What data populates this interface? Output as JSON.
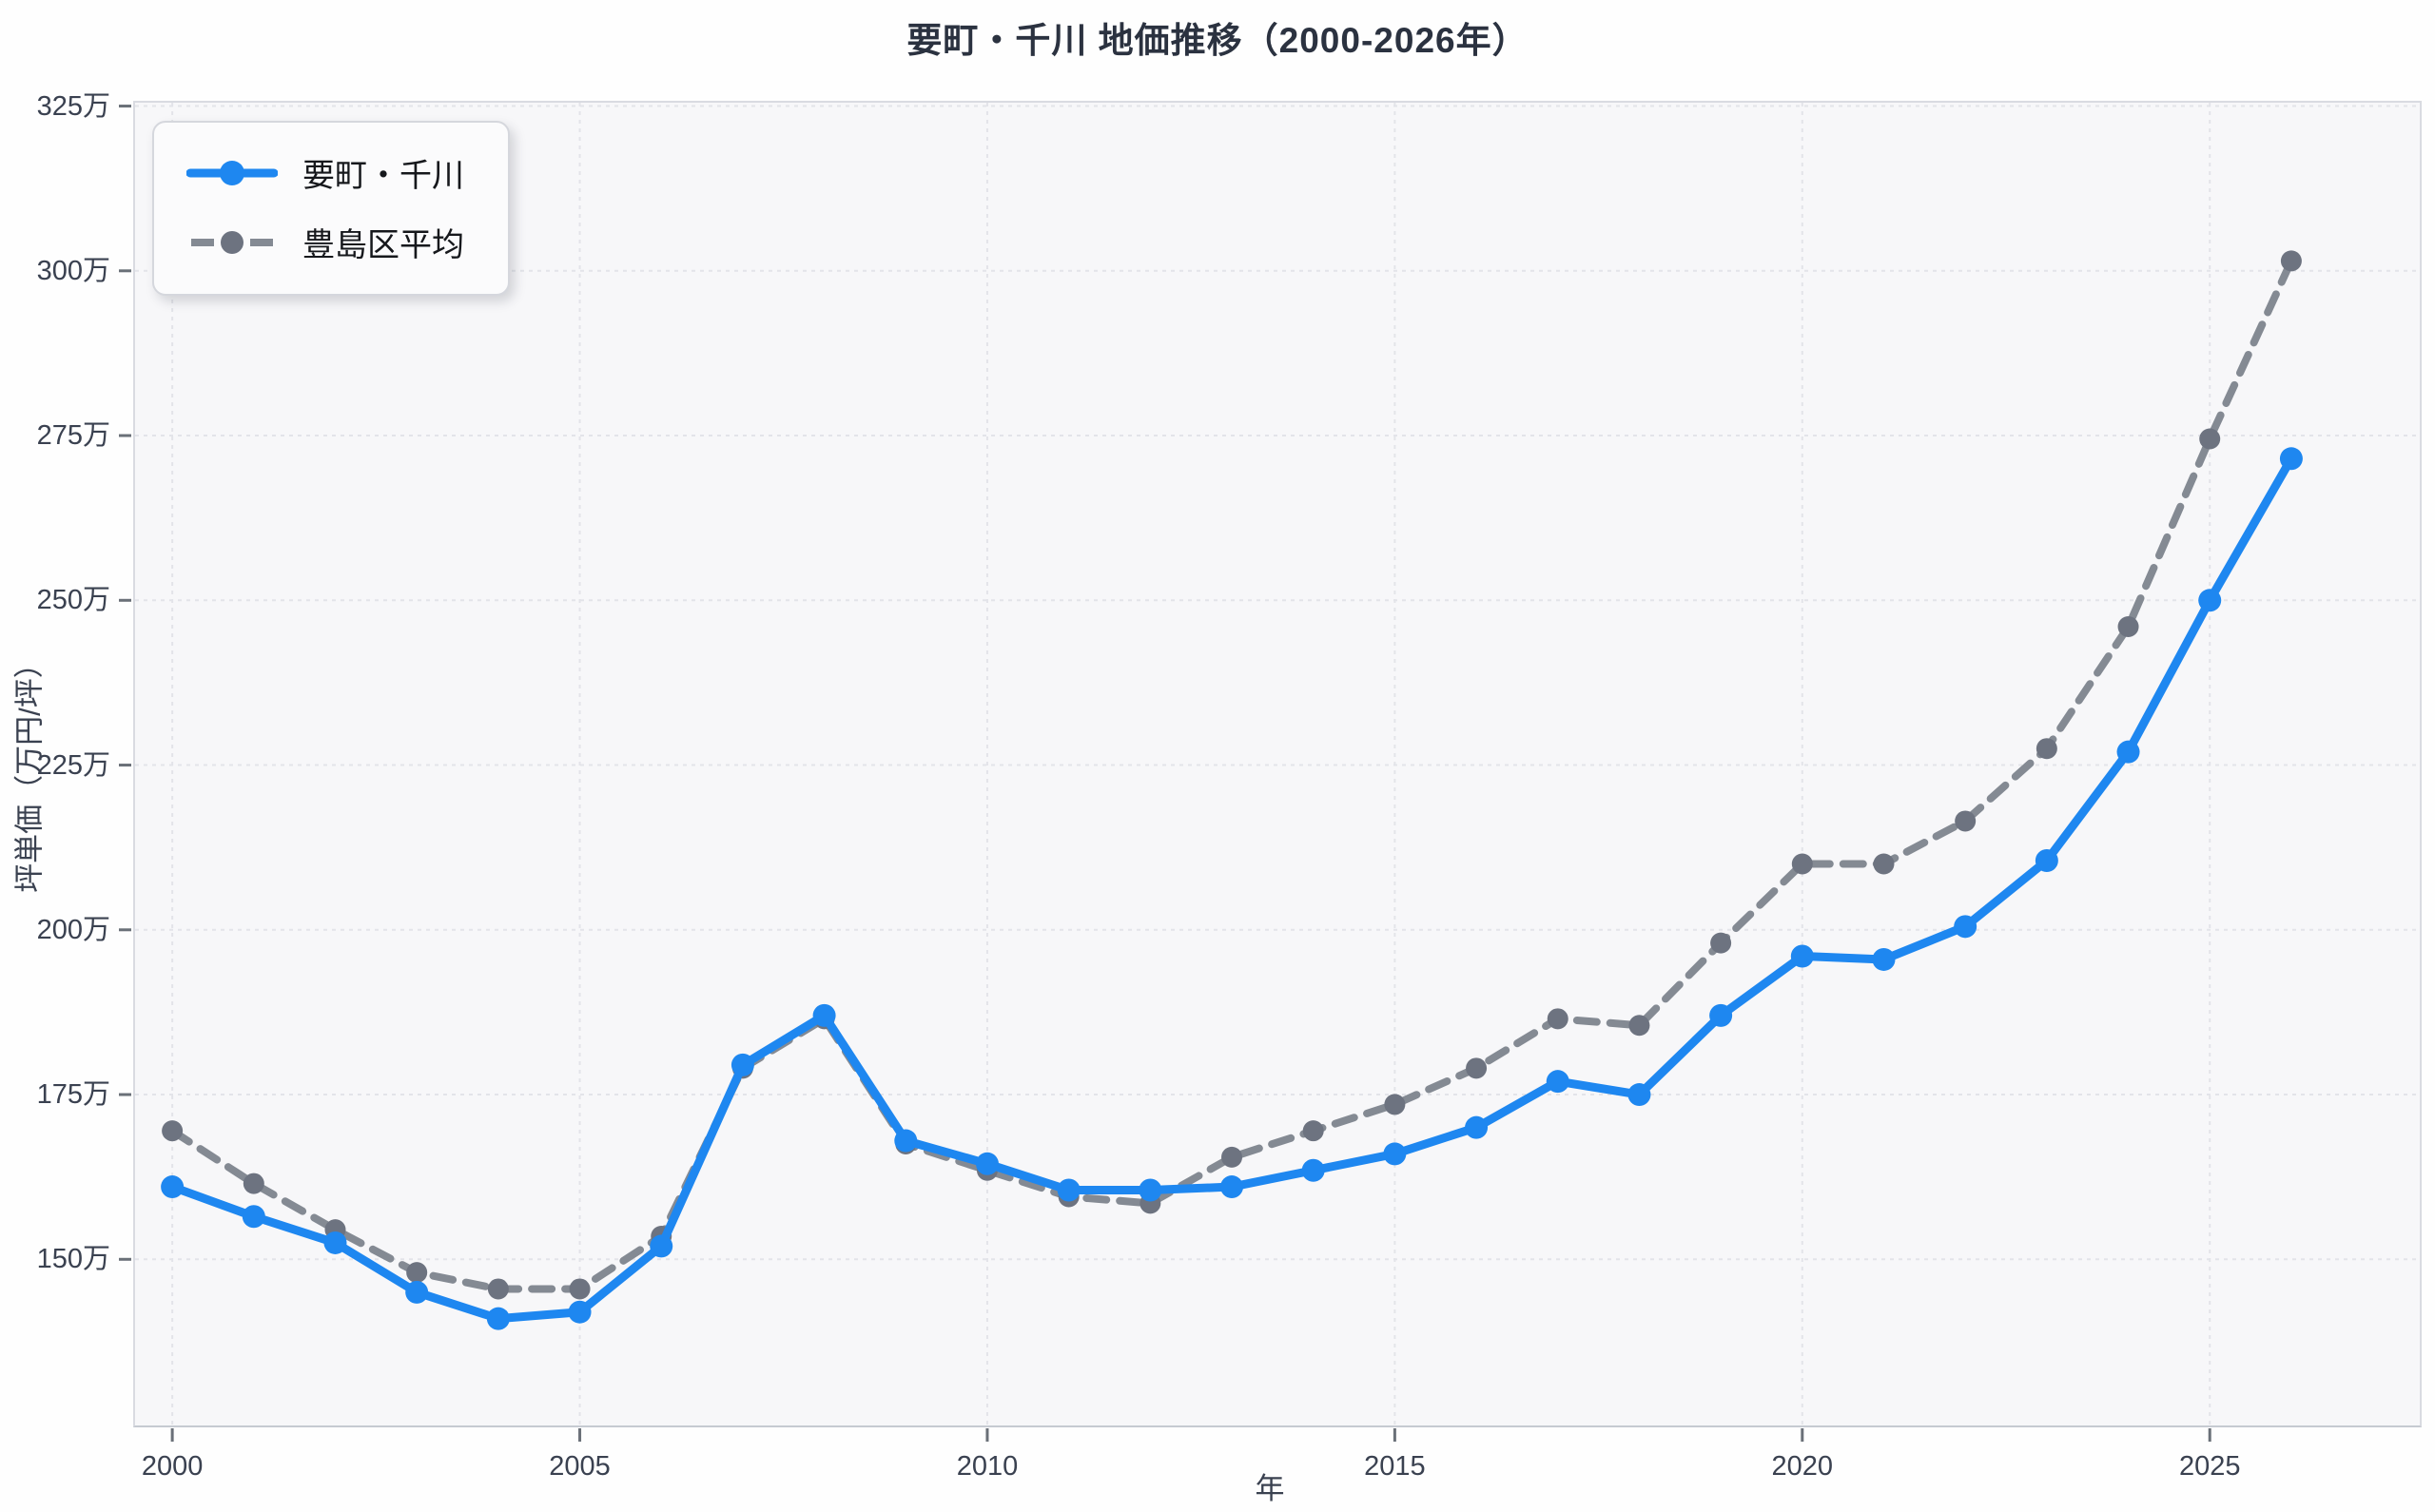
{
  "chart_data": {
    "type": "line",
    "title": "要町・千川 地価推移（2000-2026年）",
    "xlabel": "年",
    "ylabel": "坪単価（万円/坪）",
    "x": [
      2000,
      2001,
      2002,
      2003,
      2004,
      2005,
      2006,
      2007,
      2008,
      2009,
      2010,
      2011,
      2012,
      2013,
      2014,
      2015,
      2016,
      2017,
      2018,
      2019,
      2020,
      2021,
      2022,
      2023,
      2024,
      2025,
      2026
    ],
    "series": [
      {
        "name": "要町・千川",
        "color": "#1e87f0",
        "line_style": "solid",
        "marker": "circle",
        "values": [
          161,
          156.5,
          152.5,
          145,
          141,
          142,
          152,
          179.5,
          187,
          168,
          164.5,
          160.5,
          160.5,
          161,
          163.5,
          166,
          170,
          177,
          175,
          187,
          196,
          195.5,
          200.5,
          210.5,
          227,
          250,
          271.5
        ]
      },
      {
        "name": "豊島区平均",
        "color": "#848a93",
        "marker_color": "#6d7380",
        "line_style": "dashed",
        "marker": "circle",
        "values": [
          169.5,
          161.5,
          154.5,
          148,
          145.5,
          145.5,
          153.5,
          179,
          186.5,
          167.5,
          163.5,
          159.5,
          158.5,
          165.5,
          169.5,
          173.5,
          179,
          186.5,
          185.5,
          198,
          210,
          210,
          216.5,
          227.5,
          246,
          274.5,
          301.5
        ]
      }
    ],
    "y_ticks": [
      {
        "v": 150,
        "label": "150万"
      },
      {
        "v": 175,
        "label": "175万"
      },
      {
        "v": 200,
        "label": "200万"
      },
      {
        "v": 225,
        "label": "225万"
      },
      {
        "v": 250,
        "label": "250万"
      },
      {
        "v": 275,
        "label": "275万"
      },
      {
        "v": 300,
        "label": "300万"
      },
      {
        "v": 325,
        "label": "325万"
      }
    ],
    "x_ticks": [
      {
        "v": 2000,
        "label": "2000"
      },
      {
        "v": 2005,
        "label": "2005"
      },
      {
        "v": 2010,
        "label": "2010"
      },
      {
        "v": 2015,
        "label": "2015"
      },
      {
        "v": 2020,
        "label": "2020"
      },
      {
        "v": 2025,
        "label": "2025"
      }
    ],
    "xlim": [
      1999.52,
      2027.6
    ],
    "ylim": [
      124.5,
      325.8
    ],
    "grid": true,
    "legend_position": "top-left",
    "colors": {
      "grid": "#e3e4e9",
      "panel_bg": "#f7f7f9",
      "panel_border": "#d9dbe1",
      "tick_mark": "#6a7078",
      "axis_text": "#3a4150",
      "title_text": "#2b3240"
    }
  }
}
